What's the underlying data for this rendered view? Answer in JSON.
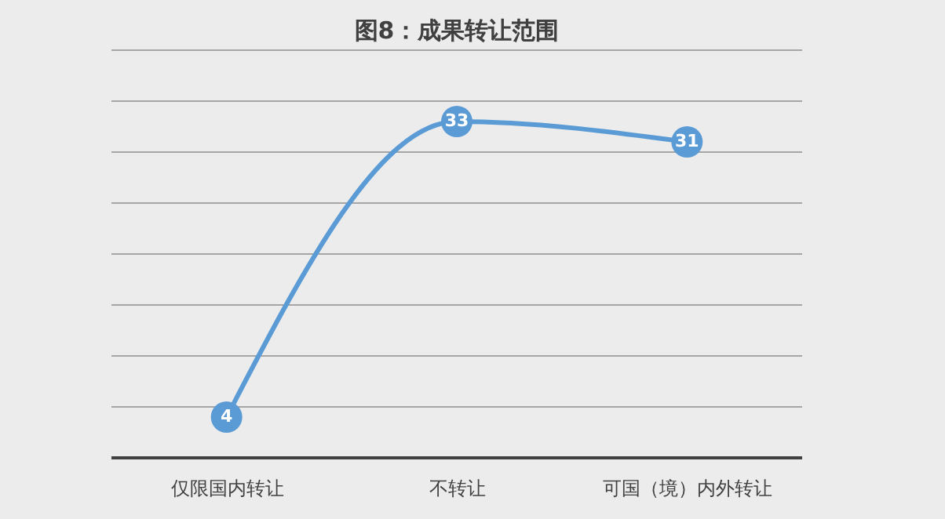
{
  "chart_data": {
    "type": "line",
    "title": "图8：成果转让范围",
    "categories": [
      "仅限国内转让",
      "不转让",
      "可国（境）内外转让"
    ],
    "series": [
      {
        "color": "#5b9bd5",
        "values": [
          4,
          33,
          31
        ]
      }
    ],
    "ylim": [
      0,
      40
    ],
    "yticks": [
      {
        "value": 0,
        "label": null
      },
      {
        "value": 5,
        "label": null
      },
      {
        "value": 10,
        "label": null
      },
      {
        "value": 15,
        "label": null
      },
      {
        "value": 20,
        "label": null
      },
      {
        "value": 25,
        "label": null
      },
      {
        "value": 30,
        "label": null
      },
      {
        "value": 35,
        "label": null
      },
      {
        "value": 40,
        "label": null
      }
    ],
    "tick_labels": "x",
    "grid": "y",
    "legend": false,
    "marker": "circle",
    "line_style": "solid",
    "data_labels": true
  }
}
